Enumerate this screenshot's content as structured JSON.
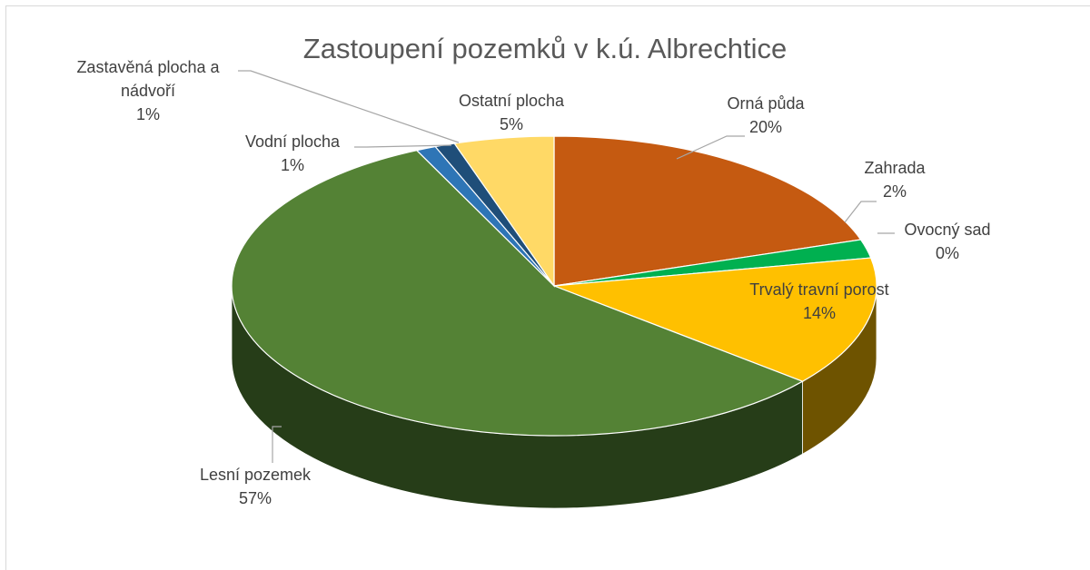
{
  "chart_data": {
    "type": "pie",
    "title": "Zastoupení pozemků v k.ú. Albrechtice",
    "categories": [
      "Orná půda",
      "Zahrada",
      "Ovocný sad",
      "Trvalý travní porost",
      "Lesní pozemek",
      "Vodní plocha",
      "Zastavěná plocha a nádvoří",
      "Ostatní plocha"
    ],
    "values": [
      20,
      2,
      0,
      14,
      57,
      1,
      1,
      5
    ],
    "value_labels": [
      "20%",
      "2%",
      "0%",
      "14%",
      "57%",
      "1%",
      "1%",
      "5%"
    ],
    "colors": [
      "#c55a11",
      "#00b050",
      "#a5a5a5",
      "#ffc000",
      "#548235",
      "#2e75b6",
      "#1f4e79",
      "#ffd966"
    ],
    "side_colors": [
      "#7f3a0b",
      "#007a3c",
      "#707070",
      "#6e5300",
      "#263d18",
      "#1c4a74",
      "#12304b",
      "#a88f42"
    ]
  }
}
